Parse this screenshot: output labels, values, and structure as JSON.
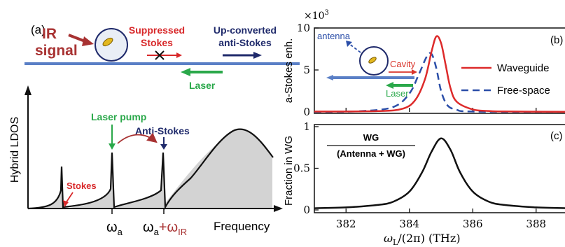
{
  "colors": {
    "ir_red": "#a83232",
    "stokes_red": "#d8282a",
    "navy": "#1f2a6b",
    "green": "#2aa84a",
    "waveguide_blue": "#5a7fc6",
    "cavity_red": "#d9342b",
    "fill_gray": "#d3d3d3",
    "curve_black": "#111111",
    "waveguide_line": "#dd2a2a",
    "freespace_line": "#2b4ea8"
  },
  "panel_a": {
    "label": "(a)",
    "ir_signal": "IR\nsignal",
    "suppressed_stokes": "Suppressed\nStokes",
    "upconverted": "Up-converted\nanti-Stokes",
    "laser": "Laser",
    "ylabel": "Hybrid LDOS",
    "xlabel": "Frequency",
    "laser_pump": "Laser pump",
    "anti_stokes": "Anti-Stokes",
    "stokes": "Stokes",
    "tick_omega_a": "ω",
    "tick_omega_a_sub": "a",
    "tick_omega_ir_plus": "+ω",
    "tick_omega_ir_sub": "IR"
  },
  "panel_b": {
    "label": "(b)",
    "ylabel": "a-Stokes enh.",
    "scale": "×10",
    "scale_exp": "3",
    "antenna": "antenna",
    "cavity": "Cavity",
    "laser": "Laser"
  },
  "panel_c": {
    "label": "(c)",
    "ylabel": "Fraction in WG",
    "ratio_num": "WG",
    "ratio_den": "(Antenna + WG)",
    "xlabel": "ω",
    "xlabel_sub": "L",
    "xlabel_rest": "/(2π) (THz)"
  },
  "chart_data": [
    {
      "type": "line",
      "title": "",
      "xlabel": "",
      "ylabel": "a-Stokes enh.",
      "xlim": [
        381,
        389
      ],
      "ylim": [
        0,
        10
      ],
      "yticks": [
        0,
        5,
        10
      ],
      "legend": "right",
      "series": [
        {
          "name": "Waveguide",
          "x": [
            381,
            383,
            383.8,
            384.2,
            384.5,
            384.7,
            384.85,
            385.0,
            385.15,
            385.3,
            385.5,
            386,
            386.5,
            387,
            389
          ],
          "y": [
            0.05,
            0.1,
            0.4,
            1.5,
            4.0,
            7.2,
            9.0,
            8.2,
            5.5,
            2.8,
            1.2,
            0.3,
            0.12,
            0.06,
            0.02
          ]
        },
        {
          "name": "Free-space",
          "x": [
            381,
            382.5,
            383.5,
            384.0,
            384.3,
            384.55,
            384.7,
            384.85,
            385.0,
            385.2,
            385.5,
            386,
            389
          ],
          "y": [
            0.02,
            0.1,
            0.6,
            2.2,
            4.5,
            6.6,
            6.9,
            5.2,
            2.5,
            0.8,
            0.25,
            0.05,
            0.02
          ]
        }
      ]
    },
    {
      "type": "line",
      "title": "",
      "xlabel": "ωL/(2π) (THz)",
      "ylabel": "Fraction in WG",
      "xlim": [
        381,
        389
      ],
      "ylim": [
        0,
        1
      ],
      "xticks": [
        382,
        384,
        386,
        388
      ],
      "yticks": [
        0,
        0.5,
        1
      ],
      "series": [
        {
          "name": "WG/(Antenna + WG)",
          "x": [
            381,
            382,
            383,
            383.5,
            384,
            384.4,
            384.7,
            385.0,
            385.3,
            385.6,
            386,
            386.5,
            387,
            388,
            389
          ],
          "y": [
            0.02,
            0.03,
            0.06,
            0.1,
            0.22,
            0.45,
            0.7,
            0.86,
            0.72,
            0.45,
            0.22,
            0.1,
            0.06,
            0.03,
            0.02
          ]
        }
      ]
    }
  ]
}
